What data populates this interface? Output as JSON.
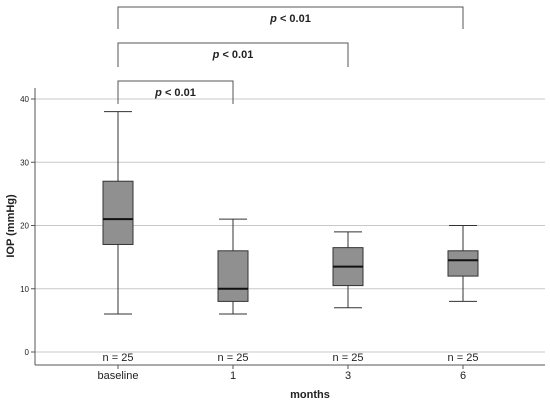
{
  "chart_data": {
    "type": "box",
    "xlabel": "months",
    "ylabel": "IOP (mmHg)",
    "ylim": [
      0,
      40
    ],
    "yticks": [
      "0",
      "10",
      "20",
      "30",
      "40"
    ],
    "grid": "horizontal",
    "box_color": "#909090",
    "categories": [
      "baseline",
      "1",
      "3",
      "6"
    ],
    "boxes": [
      {
        "category": "baseline",
        "min": 6,
        "q1": 17,
        "median": 21,
        "q3": 27,
        "max": 38,
        "n_label": "n = 25"
      },
      {
        "category": "1",
        "min": 6,
        "q1": 8,
        "median": 10,
        "q3": 16,
        "max": 21,
        "n_label": "n = 25"
      },
      {
        "category": "3",
        "min": 7,
        "q1": 10.5,
        "median": 13.5,
        "q3": 16.5,
        "max": 19,
        "n_label": "n = 25"
      },
      {
        "category": "6",
        "min": 8,
        "q1": 12,
        "median": 14.5,
        "q3": 16,
        "max": 20,
        "n_label": "n = 25"
      }
    ],
    "comparisons": [
      {
        "from": "baseline",
        "to": "1",
        "p_symbol": "p",
        "p_rest": " < 0.01"
      },
      {
        "from": "baseline",
        "to": "3",
        "p_symbol": "p",
        "p_rest": " < 0.01"
      },
      {
        "from": "baseline",
        "to": "6",
        "p_symbol": "p",
        "p_rest": " < 0.01"
      }
    ]
  }
}
